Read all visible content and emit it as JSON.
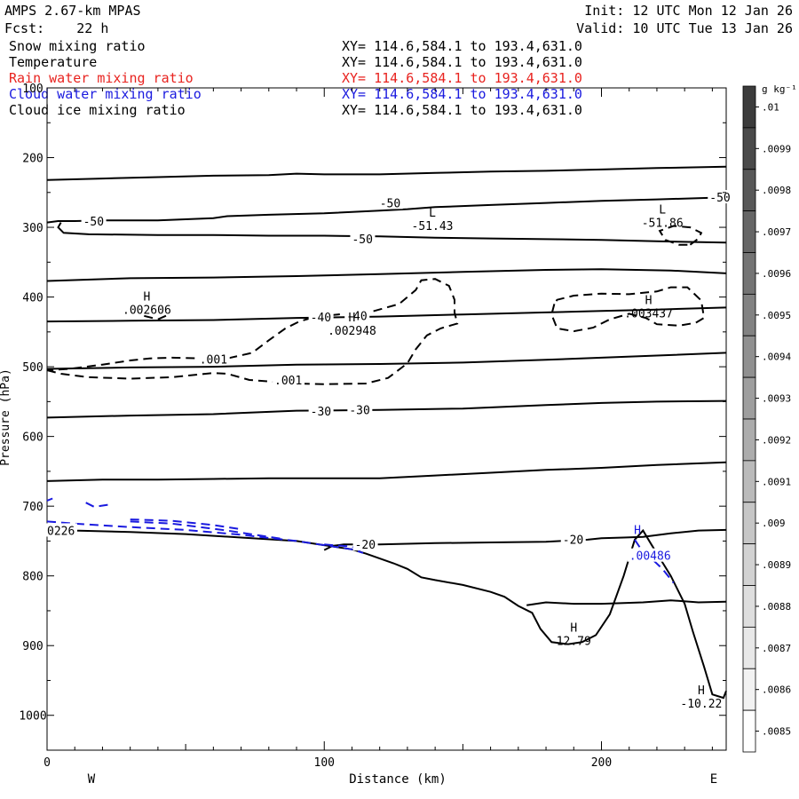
{
  "header": {
    "model": "AMPS 2.67-km MPAS",
    "forecast": "Fcst:    22 h",
    "init": "Init: 12 UTC Mon 12 Jan 26",
    "valid": "Valid: 10 UTC Tue 13 Jan 26",
    "fields": [
      {
        "name": "Snow mixing ratio",
        "xy": "XY= 114.6,584.1 to 193.4,631.0",
        "color": "#000000"
      },
      {
        "name": "Temperature",
        "xy": "XY= 114.6,584.1 to 193.4,631.0",
        "color": "#000000"
      },
      {
        "name": "Rain water mixing ratio",
        "xy": "XY= 114.6,584.1 to 193.4,631.0",
        "color": "#e8231f"
      },
      {
        "name": "Cloud water mixing ratio",
        "xy": "XY= 114.6,584.1 to 193.4,631.0",
        "color": "#1a1adf"
      },
      {
        "name": "Cloud ice mixing ratio",
        "xy": "XY= 114.6,584.1 to 193.4,631.0",
        "color": "#000000"
      }
    ]
  },
  "chart_data": {
    "type": "contour-cross-section",
    "xlabel": "Distance (km)",
    "ylabel": "Pressure (hPa)",
    "xlim": [
      0,
      245
    ],
    "ylim": [
      1050,
      100
    ],
    "x_ticks": [
      0,
      100,
      200
    ],
    "y_ticks": [
      100,
      200,
      300,
      400,
      500,
      600,
      700,
      800,
      900,
      1000
    ],
    "endpoint_labels": {
      "left": "W",
      "right": "E"
    },
    "colorbar": {
      "units": "g kg⁻¹",
      "levels": [
        ".01",
        ".0099",
        ".0098",
        ".0097",
        ".0096",
        ".0095",
        ".0094",
        ".0093",
        ".0092",
        ".0091",
        ".009",
        ".0089",
        ".0088",
        ".0087",
        ".0086",
        ".0085"
      ],
      "colors": [
        "#3c3c3c",
        "#4a4a4a",
        "#585858",
        "#666666",
        "#747474",
        "#828282",
        "#909090",
        "#9e9e9e",
        "#acacac",
        "#bababa",
        "#c6c6c6",
        "#d2d2d2",
        "#dedede",
        "#e8e8e8",
        "#f2f2f2",
        "#ffffff"
      ]
    },
    "temperature_contours": [
      {
        "points": [
          [
            0,
            232
          ],
          [
            20,
            230
          ],
          [
            40,
            228
          ],
          [
            60,
            226
          ],
          [
            80,
            225
          ],
          [
            90,
            223
          ],
          [
            100,
            224
          ],
          [
            120,
            224
          ],
          [
            140,
            222
          ],
          [
            160,
            220
          ],
          [
            180,
            219
          ],
          [
            200,
            217
          ],
          [
            220,
            215
          ],
          [
            245,
            213
          ]
        ]
      },
      {
        "points": [
          [
            0,
            293
          ],
          [
            4,
            291
          ],
          [
            10,
            291
          ],
          [
            20,
            290
          ],
          [
            40,
            290
          ],
          [
            60,
            287
          ],
          [
            65,
            284
          ],
          [
            80,
            282
          ],
          [
            100,
            280
          ],
          [
            120,
            276
          ],
          [
            130,
            274
          ],
          [
            140,
            271
          ],
          [
            160,
            268
          ],
          [
            180,
            265
          ],
          [
            200,
            262
          ],
          [
            220,
            260
          ],
          [
            245,
            257
          ]
        ]
      },
      {
        "points": [
          [
            5,
            293
          ],
          [
            4,
            300
          ],
          [
            6,
            308
          ],
          [
            15,
            310
          ],
          [
            40,
            311
          ],
          [
            60,
            311
          ],
          [
            80,
            312
          ],
          [
            100,
            312
          ],
          [
            120,
            313
          ],
          [
            140,
            315
          ],
          [
            160,
            316
          ],
          [
            180,
            317
          ],
          [
            200,
            318
          ],
          [
            220,
            320
          ],
          [
            245,
            322
          ]
        ]
      },
      {
        "points": [
          [
            0,
            377
          ],
          [
            30,
            373
          ],
          [
            60,
            372
          ],
          [
            90,
            370
          ],
          [
            120,
            367
          ],
          [
            150,
            364
          ],
          [
            180,
            361
          ],
          [
            200,
            360
          ],
          [
            225,
            362
          ],
          [
            245,
            366
          ]
        ]
      },
      {
        "points": [
          [
            0,
            435
          ],
          [
            30,
            434
          ],
          [
            60,
            433
          ],
          [
            90,
            430
          ],
          [
            120,
            428
          ],
          [
            150,
            425
          ],
          [
            180,
            422
          ],
          [
            200,
            420
          ],
          [
            220,
            418
          ],
          [
            245,
            415
          ]
        ]
      },
      {
        "points": [
          [
            0,
            503
          ],
          [
            30,
            501
          ],
          [
            60,
            500
          ],
          [
            90,
            497
          ],
          [
            120,
            496
          ],
          [
            150,
            494
          ],
          [
            180,
            490
          ],
          [
            200,
            487
          ],
          [
            220,
            484
          ],
          [
            245,
            480
          ]
        ]
      },
      {
        "points": [
          [
            0,
            573
          ],
          [
            30,
            570
          ],
          [
            60,
            568
          ],
          [
            90,
            563
          ],
          [
            120,
            562
          ],
          [
            150,
            560
          ],
          [
            180,
            555
          ],
          [
            200,
            552
          ],
          [
            220,
            550
          ],
          [
            245,
            549
          ]
        ]
      },
      {
        "points": [
          [
            0,
            664
          ],
          [
            20,
            662
          ],
          [
            40,
            662
          ],
          [
            60,
            661
          ],
          [
            80,
            660
          ],
          [
            100,
            660
          ],
          [
            120,
            660
          ],
          [
            140,
            656
          ],
          [
            160,
            652
          ],
          [
            180,
            648
          ],
          [
            200,
            645
          ],
          [
            220,
            641
          ],
          [
            245,
            637
          ]
        ]
      },
      {
        "points": [
          [
            100,
            763
          ],
          [
            103,
            757
          ],
          [
            107,
            755
          ],
          [
            120,
            755
          ],
          [
            140,
            753
          ],
          [
            160,
            752
          ],
          [
            180,
            751
          ],
          [
            195,
            748
          ],
          [
            200,
            746
          ],
          [
            208,
            745
          ],
          [
            215,
            744
          ],
          [
            225,
            739
          ],
          [
            235,
            735
          ],
          [
            245,
            734
          ]
        ]
      },
      {
        "points": [
          [
            173,
            842
          ],
          [
            180,
            838
          ],
          [
            190,
            840
          ],
          [
            200,
            840
          ],
          [
            215,
            838
          ],
          [
            225,
            835
          ],
          [
            235,
            838
          ],
          [
            245,
            837
          ]
        ]
      }
    ],
    "terrain": {
      "points": [
        [
          0,
          733
        ],
        [
          10,
          735
        ],
        [
          30,
          737
        ],
        [
          50,
          740
        ],
        [
          70,
          745
        ],
        [
          90,
          750
        ],
        [
          100,
          756
        ],
        [
          110,
          762
        ],
        [
          115,
          768
        ],
        [
          125,
          782
        ],
        [
          130,
          790
        ],
        [
          135,
          802
        ],
        [
          140,
          806
        ],
        [
          150,
          813
        ],
        [
          160,
          823
        ],
        [
          165,
          830
        ],
        [
          170,
          843
        ],
        [
          175,
          853
        ],
        [
          178,
          876
        ],
        [
          182,
          895
        ],
        [
          188,
          898
        ],
        [
          193,
          895
        ],
        [
          198,
          885
        ],
        [
          203,
          855
        ],
        [
          208,
          800
        ],
        [
          212,
          748
        ],
        [
          215,
          735
        ],
        [
          218,
          755
        ],
        [
          225,
          800
        ],
        [
          230,
          840
        ],
        [
          233,
          880
        ],
        [
          237,
          930
        ],
        [
          240,
          970
        ],
        [
          244,
          975
        ],
        [
          245,
          965
        ]
      ]
    },
    "cloud_ice_contours": [
      {
        "points": [
          [
            0,
            505
          ],
          [
            5,
            510
          ],
          [
            15,
            515
          ],
          [
            30,
            517
          ],
          [
            45,
            515
          ],
          [
            55,
            511
          ],
          [
            60,
            509
          ],
          [
            65,
            510
          ],
          [
            73,
            519
          ],
          [
            90,
            524
          ],
          [
            100,
            525
          ],
          [
            115,
            524
          ],
          [
            123,
            516
          ],
          [
            130,
            495
          ],
          [
            133,
            475
          ],
          [
            137,
            455
          ],
          [
            142,
            445
          ],
          [
            148,
            438
          ],
          [
            147,
            422
          ],
          [
            147,
            404
          ],
          [
            145,
            384
          ],
          [
            140,
            374
          ],
          [
            135,
            376
          ],
          [
            133,
            390
          ],
          [
            127,
            410
          ],
          [
            118,
            420
          ],
          [
            105,
            425
          ],
          [
            97,
            428
          ],
          [
            91,
            435
          ],
          [
            86,
            445
          ],
          [
            80,
            462
          ],
          [
            74,
            480
          ],
          [
            65,
            488
          ],
          [
            55,
            488
          ],
          [
            45,
            487
          ],
          [
            37,
            488
          ],
          [
            30,
            491
          ],
          [
            20,
            497
          ],
          [
            14,
            500
          ],
          [
            8,
            503
          ],
          [
            0,
            505
          ]
        ]
      },
      {
        "points": [
          [
            183,
            410
          ],
          [
            182,
            425
          ],
          [
            184,
            445
          ],
          [
            190,
            449
          ],
          [
            197,
            444
          ],
          [
            203,
            432
          ],
          [
            210,
            424
          ],
          [
            216,
            430
          ],
          [
            220,
            439
          ],
          [
            228,
            441
          ],
          [
            234,
            437
          ],
          [
            237,
            430
          ],
          [
            236,
            405
          ],
          [
            231,
            386
          ],
          [
            225,
            386
          ],
          [
            220,
            392
          ],
          [
            210,
            396
          ],
          [
            200,
            395
          ],
          [
            190,
            398
          ],
          [
            184,
            404
          ],
          [
            183,
            410
          ]
        ]
      },
      {
        "points": [
          [
            35,
            427
          ],
          [
            40,
            432
          ],
          [
            44,
            425
          ]
        ]
      },
      {
        "points": [
          [
            232,
            325
          ],
          [
            235,
            316
          ],
          [
            236,
            308
          ],
          [
            232,
            300
          ],
          [
            226,
            298
          ],
          [
            221,
            305
          ],
          [
            223,
            318
          ],
          [
            228,
            325
          ],
          [
            232,
            325
          ]
        ]
      }
    ],
    "cloud_water_contours": [
      {
        "points": [
          [
            0,
            722
          ],
          [
            10,
            725
          ],
          [
            30,
            730
          ],
          [
            50,
            734
          ],
          [
            70,
            741
          ],
          [
            90,
            750
          ],
          [
            100,
            756
          ],
          [
            110,
            762
          ],
          [
            114,
            767
          ]
        ]
      },
      {
        "points": [
          [
            30,
            722
          ],
          [
            45,
            725
          ],
          [
            65,
            735
          ],
          [
            75,
            741
          ],
          [
            85,
            747
          ]
        ]
      },
      {
        "points": [
          [
            30,
            719
          ],
          [
            45,
            721
          ],
          [
            60,
            727
          ],
          [
            70,
            733
          ]
        ]
      },
      {
        "points": [
          [
            100,
            755
          ],
          [
            110,
            758
          ],
          [
            114,
            765
          ]
        ]
      },
      {
        "points": [
          [
            14,
            695
          ],
          [
            17,
            701
          ],
          [
            22,
            698
          ]
        ]
      },
      {
        "points": [
          [
            0,
            692
          ],
          [
            2,
            689
          ]
        ]
      },
      {
        "points": [
          [
            212,
            748
          ],
          [
            214,
            760
          ],
          [
            222,
            790
          ],
          [
            226,
            810
          ]
        ]
      }
    ],
    "contour_labels": [
      {
        "text": "-50",
        "x": 13,
        "y": 292
      },
      {
        "text": "-50",
        "x": 120,
        "y": 266
      },
      {
        "text": "-50",
        "x": 110,
        "y": 318
      },
      {
        "text": "-50",
        "x": 239,
        "y": 258
      },
      {
        "text": "-40",
        "x": 95,
        "y": 430
      },
      {
        "text": "-40",
        "x": 108,
        "y": 428
      },
      {
        "text": "-30",
        "x": 95,
        "y": 565
      },
      {
        "text": "-30",
        "x": 109,
        "y": 563
      },
      {
        "text": "-20",
        "x": 111,
        "y": 756
      },
      {
        "text": "-20",
        "x": 186,
        "y": 749
      },
      {
        "text": ".001",
        "x": 55,
        "y": 490
      },
      {
        "text": ".001",
        "x": 82,
        "y": 520
      },
      {
        "text": "0226",
        "x": 0,
        "y": 736
      },
      {
        "text": ".00486",
        "x": 210,
        "y": 772,
        "color": "#1a1adf"
      }
    ],
    "extrema": [
      {
        "marker": "L",
        "value": "-51.43",
        "x": 139,
        "y": 290
      },
      {
        "marker": "L",
        "value": "-51.86",
        "x": 222,
        "y": 285
      },
      {
        "marker": "H",
        "value": ".002606",
        "x": 36,
        "y": 410
      },
      {
        "marker": "H",
        "value": ".002948",
        "x": 110,
        "y": 440
      },
      {
        "marker": "H",
        "value": ".003437",
        "x": 217,
        "y": 415
      },
      {
        "marker": "H",
        "value": "12.79",
        "x": 190,
        "y": 885
      },
      {
        "marker": "H",
        "value": "-10.22",
        "x": 236,
        "y": 975
      },
      {
        "marker": "H",
        "value": "",
        "x": 213,
        "y": 745,
        "color": "#1a1adf"
      }
    ]
  }
}
